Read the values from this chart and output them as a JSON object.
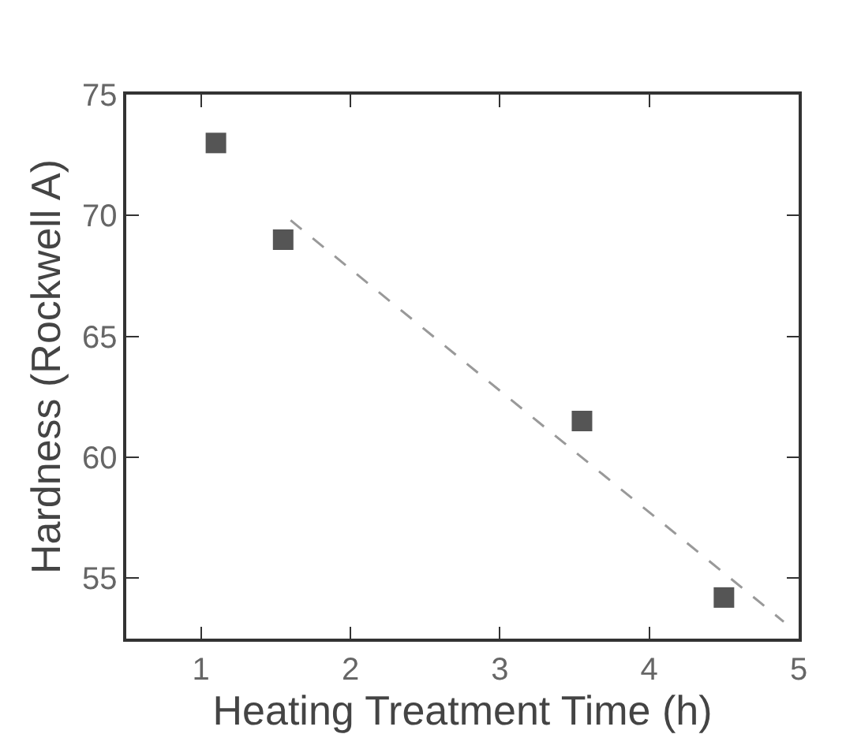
{
  "chart_data": {
    "type": "scatter",
    "xlabel": "Heating Treatment Time (h)",
    "ylabel": "Hardness (Rockwell A)",
    "xlim": [
      0.5,
      5
    ],
    "xticks": [
      1,
      2,
      3,
      4,
      5
    ],
    "ylim": [
      52.5,
      75
    ],
    "yticks": [
      55,
      60,
      65,
      70,
      75
    ],
    "series": [
      {
        "color": "#555555",
        "marker": "square",
        "x": [
          1.1,
          1.55,
          3.55,
          4.5
        ],
        "values": [
          73,
          69,
          61.5,
          54.2
        ]
      },
      {
        "type": "line",
        "color": "#999999",
        "line_style": "dashed",
        "marker": "none",
        "x": [
          1.6,
          4.9
        ],
        "values": [
          69.8,
          53.2
        ]
      }
    ]
  }
}
